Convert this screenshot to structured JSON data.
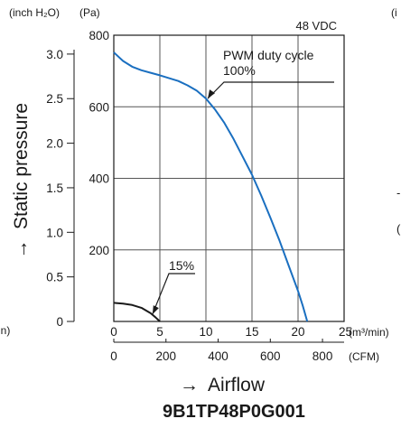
{
  "chart_data": {
    "type": "line",
    "title": "9B1TP48P0G001",
    "voltage_label": "48 VDC",
    "ylabel": "Static pressure",
    "ylabel_arrow": "→",
    "xlabel": "Airflow",
    "xlabel_arrow": "→",
    "y_unit_inch": "(inch H₂O)",
    "y_unit_pa": "(Pa)",
    "x_unit_m3": "(m³/min)",
    "x_unit_cfm": "(CFM)",
    "x_ticks_m3": [
      "0",
      "5",
      "10",
      "15",
      "20",
      "25"
    ],
    "x_ticks_cfm": [
      "0",
      "200",
      "400",
      "600",
      "800"
    ],
    "y_ticks_pa": [
      "200",
      "400",
      "600",
      "800"
    ],
    "y_ticks_inch": [
      "0",
      "0.5",
      "1.0",
      "1.5",
      "2.0",
      "2.5",
      "3.0"
    ],
    "xlim": [
      0,
      25
    ],
    "ylim": [
      0,
      800
    ],
    "grid": true,
    "annotations": [
      "PWM duty cycle",
      "100%",
      "15%"
    ],
    "left_edge_label": "in)",
    "right_edge_top_label": "(i",
    "right_edge_mid_labels": [
      "-",
      "("
    ],
    "series": [
      {
        "name": "100%",
        "color": "#1a6fc0",
        "x": [
          0,
          1,
          2,
          3,
          4,
          5,
          6,
          7,
          8,
          9,
          10,
          11,
          12,
          13,
          14,
          15,
          16,
          17,
          18,
          19,
          20,
          20.5,
          21
        ],
        "y": [
          752,
          728,
          712,
          702,
          695,
          688,
          680,
          672,
          660,
          645,
          623,
          592,
          555,
          510,
          460,
          410,
          352,
          290,
          225,
          155,
          85,
          45,
          0
        ]
      },
      {
        "name": "15%",
        "color": "#1a1a1a",
        "x": [
          0,
          1,
          2,
          3,
          4,
          4.5,
          5
        ],
        "y": [
          52,
          50,
          46,
          38,
          23,
          12,
          0
        ]
      }
    ]
  }
}
